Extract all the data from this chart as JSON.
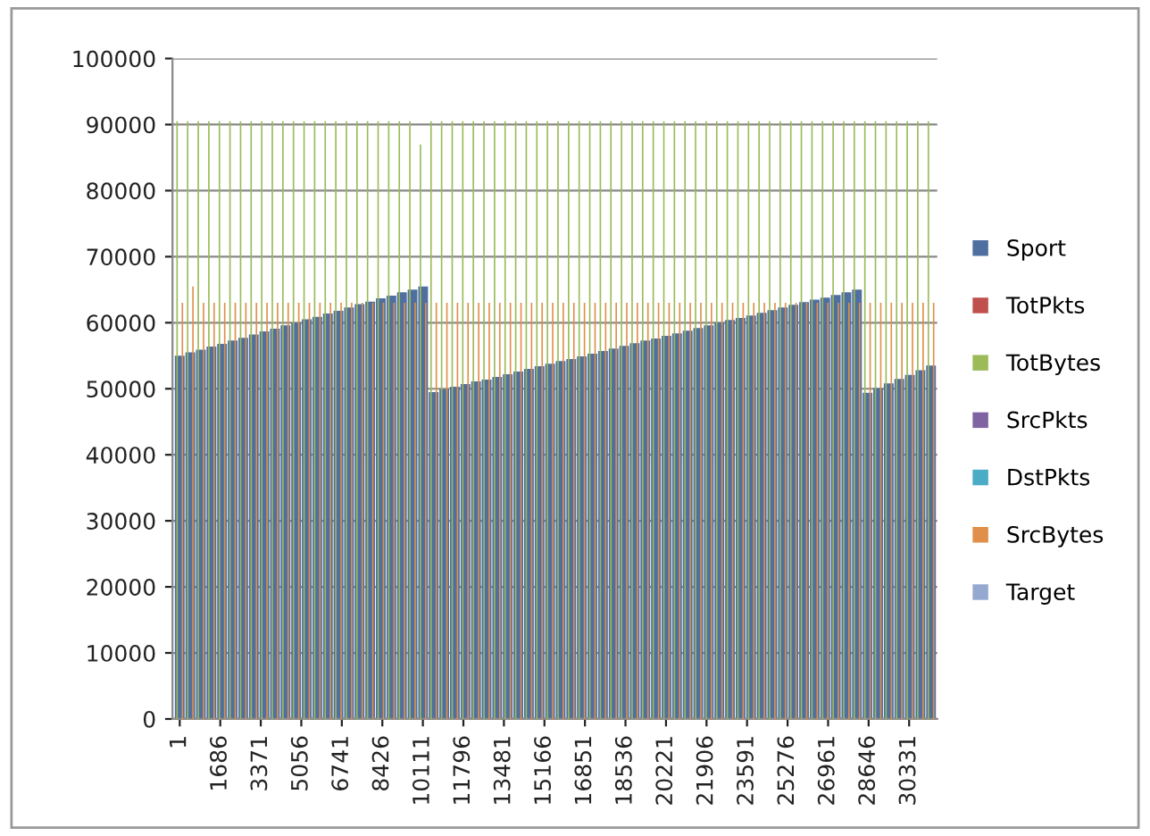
{
  "chart_data": {
    "type": "bar",
    "x": [
      1,
      441,
      881,
      1321,
      1761,
      2201,
      2641,
      3081,
      3521,
      3961,
      4401,
      4841,
      5281,
      5721,
      6161,
      6601,
      7041,
      7481,
      7921,
      8361,
      8801,
      9241,
      9681,
      10121,
      10561,
      11001,
      11441,
      11881,
      12321,
      12761,
      13201,
      13641,
      14081,
      14521,
      14961,
      15401,
      15841,
      16281,
      16721,
      17161,
      17601,
      18041,
      18481,
      18921,
      19361,
      19801,
      20241,
      20681,
      21121,
      21561,
      22001,
      22441,
      22881,
      23321,
      23761,
      24201,
      24641,
      25081,
      25521,
      25961,
      26401,
      26841,
      27281,
      27721,
      28161,
      28601,
      29041,
      29481,
      29921,
      30361,
      30801,
      31241
    ],
    "series": [
      {
        "name": "Sport",
        "color": "#4f6fa0",
        "values": [
          55000,
          55500,
          55900,
          56400,
          56800,
          57300,
          57700,
          58200,
          58700,
          59100,
          59600,
          60000,
          60500,
          60900,
          61400,
          61800,
          62300,
          62800,
          63200,
          63700,
          64100,
          64600,
          65000,
          65500,
          49500,
          49900,
          50300,
          50700,
          51100,
          51400,
          51800,
          52200,
          52600,
          53000,
          53400,
          53800,
          54200,
          54500,
          54900,
          55300,
          55700,
          56100,
          56500,
          56900,
          57300,
          57600,
          58000,
          58400,
          58800,
          59200,
          59600,
          60000,
          60400,
          60700,
          61100,
          61500,
          61900,
          62300,
          62700,
          63100,
          63500,
          63800,
          64200,
          64600,
          65000,
          49400,
          50100,
          50800,
          51500,
          52100,
          52800,
          53500
        ]
      },
      {
        "name": "TotPkts",
        "color": "#c0504d",
        "values": [
          0,
          0,
          0,
          0,
          0,
          0,
          0,
          0,
          0,
          0,
          0,
          0,
          0,
          0,
          0,
          0,
          0,
          0,
          0,
          0,
          0,
          0,
          0,
          0,
          0,
          0,
          0,
          0,
          0,
          0,
          0,
          0,
          0,
          0,
          0,
          0,
          0,
          0,
          0,
          0,
          0,
          0,
          0,
          0,
          0,
          0,
          0,
          0,
          0,
          0,
          0,
          0,
          0,
          0,
          0,
          0,
          0,
          0,
          0,
          0,
          0,
          0,
          0,
          0,
          0,
          0,
          0,
          0,
          0,
          0,
          0,
          0
        ]
      },
      {
        "name": "TotBytes",
        "color": "#9bbb59",
        "values": [
          90500,
          90500,
          90500,
          90500,
          90500,
          90500,
          90500,
          90500,
          90500,
          90500,
          90500,
          90500,
          90500,
          90500,
          90500,
          90500,
          90500,
          90500,
          90500,
          90500,
          90500,
          90500,
          90500,
          87000,
          90500,
          90500,
          90500,
          90500,
          90500,
          90500,
          90500,
          90500,
          90500,
          90500,
          90500,
          90500,
          90500,
          90500,
          90500,
          90500,
          90500,
          90500,
          90500,
          90500,
          90500,
          90500,
          90500,
          90500,
          90500,
          90500,
          90500,
          90500,
          90500,
          90500,
          90500,
          90500,
          90500,
          90500,
          90500,
          90500,
          90500,
          90500,
          90500,
          90500,
          90500,
          90500,
          90500,
          90500,
          90500,
          90500,
          90500,
          90500
        ]
      },
      {
        "name": "SrcPkts",
        "color": "#8064a2",
        "values": [
          0,
          0,
          0,
          0,
          0,
          0,
          0,
          0,
          0,
          0,
          0,
          0,
          0,
          0,
          0,
          0,
          0,
          0,
          0,
          0,
          0,
          0,
          0,
          0,
          0,
          0,
          0,
          0,
          0,
          0,
          0,
          0,
          0,
          0,
          0,
          0,
          0,
          0,
          0,
          0,
          0,
          0,
          0,
          0,
          0,
          0,
          0,
          0,
          0,
          0,
          0,
          0,
          0,
          0,
          0,
          0,
          0,
          0,
          0,
          0,
          0,
          0,
          0,
          0,
          0,
          0,
          0,
          0,
          0,
          0,
          0,
          0
        ]
      },
      {
        "name": "DstPkts",
        "color": "#4bacc6",
        "values": [
          0,
          0,
          0,
          0,
          0,
          0,
          0,
          0,
          0,
          0,
          0,
          0,
          0,
          0,
          0,
          0,
          0,
          0,
          0,
          0,
          0,
          0,
          0,
          0,
          0,
          0,
          0,
          0,
          0,
          0,
          0,
          0,
          0,
          0,
          0,
          0,
          0,
          0,
          0,
          0,
          0,
          0,
          0,
          0,
          0,
          0,
          0,
          0,
          0,
          0,
          0,
          0,
          0,
          0,
          0,
          0,
          0,
          0,
          0,
          0,
          0,
          0,
          0,
          0,
          0,
          0,
          0,
          0,
          0,
          0,
          0,
          0
        ]
      },
      {
        "name": "SrcBytes",
        "color": "#e0904a",
        "values": [
          63000,
          65500,
          63000,
          63000,
          63000,
          63000,
          63000,
          63000,
          63000,
          63000,
          63000,
          63000,
          63000,
          63000,
          63000,
          63000,
          63000,
          63000,
          63000,
          63000,
          63000,
          63000,
          63000,
          63000,
          63000,
          63000,
          63000,
          63000,
          63000,
          63000,
          63000,
          63000,
          63000,
          63000,
          63000,
          63000,
          63000,
          63000,
          63000,
          63000,
          63000,
          63000,
          63000,
          63000,
          63000,
          63000,
          63000,
          63000,
          63000,
          63000,
          63000,
          63000,
          63000,
          63000,
          63000,
          63000,
          63000,
          63000,
          63000,
          63000,
          63000,
          63000,
          63000,
          63000,
          63000,
          63000,
          63000,
          63000,
          63000,
          63000,
          63000,
          63000
        ]
      },
      {
        "name": "Target",
        "color": "#95a9d0",
        "values": [
          0,
          0,
          0,
          0,
          0,
          0,
          0,
          0,
          0,
          0,
          0,
          0,
          0,
          0,
          0,
          0,
          0,
          0,
          0,
          0,
          0,
          0,
          0,
          0,
          0,
          0,
          0,
          0,
          0,
          0,
          0,
          0,
          0,
          0,
          0,
          0,
          0,
          0,
          0,
          0,
          0,
          0,
          0,
          0,
          0,
          0,
          0,
          0,
          0,
          0,
          0,
          0,
          0,
          0,
          0,
          0,
          0,
          0,
          0,
          0,
          0,
          0,
          0,
          0,
          0,
          0,
          0,
          0,
          0,
          0,
          0,
          0
        ]
      }
    ],
    "xlim": [
      -300,
      31500
    ],
    "xticks": [
      1,
      1686,
      3371,
      5056,
      6741,
      8426,
      10111,
      11796,
      13481,
      15166,
      16851,
      18536,
      20221,
      21906,
      23591,
      25276,
      26961,
      28646,
      30331
    ],
    "ylim": [
      0,
      100000
    ],
    "yticks": [
      0,
      10000,
      20000,
      30000,
      40000,
      50000,
      60000,
      70000,
      80000,
      90000,
      100000
    ],
    "grid": "y",
    "legend": "right"
  }
}
